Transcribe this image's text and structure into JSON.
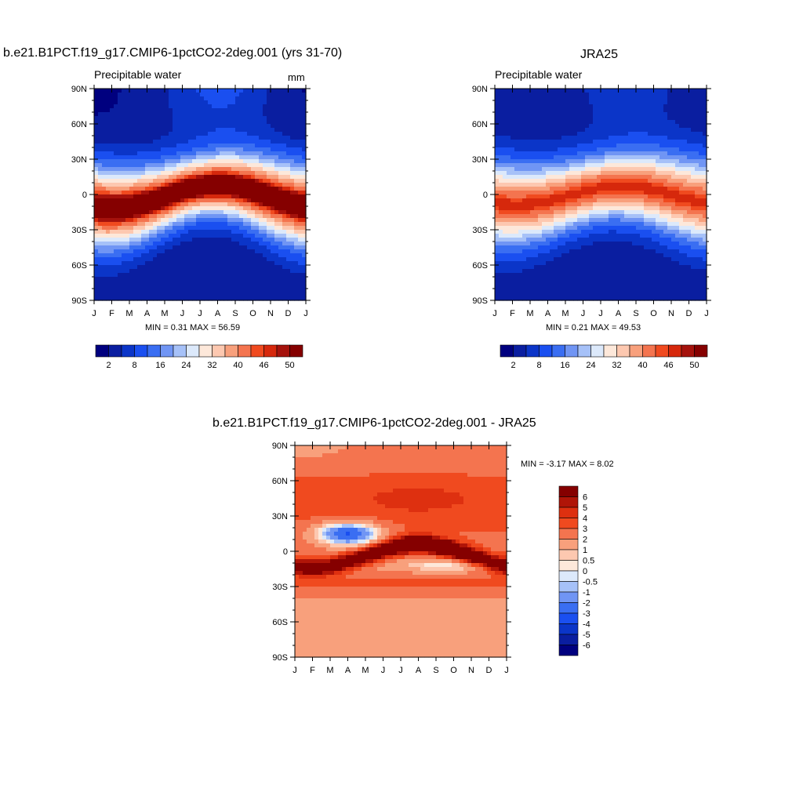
{
  "chart_data": [
    {
      "type": "heatmap",
      "title": "b.e21.B1PCT.f19_g17.CMIP6-1pctCO2-2deg.001 (yrs 31-70)",
      "subtitle": "Precipitable water",
      "units": "mm",
      "x_ticks": [
        "J",
        "F",
        "M",
        "A",
        "M",
        "J",
        "J",
        "A",
        "S",
        "O",
        "N",
        "D",
        "J"
      ],
      "y_ticks": [
        "90N",
        "60N",
        "30N",
        "0",
        "30S",
        "60S",
        "90S"
      ],
      "min": "0.31",
      "max": "56.59",
      "stats_text": "MIN =   0.31 MAX =  56.59",
      "colorbar_labels": [
        "2",
        "8",
        "16",
        "24",
        "32",
        "40",
        "46",
        "50"
      ]
    },
    {
      "type": "heatmap",
      "title": "JRA25",
      "subtitle": "Precipitable water",
      "x_ticks": [
        "J",
        "F",
        "M",
        "A",
        "M",
        "J",
        "J",
        "A",
        "S",
        "O",
        "N",
        "D",
        "J"
      ],
      "y_ticks": [
        "90N",
        "60N",
        "30N",
        "0",
        "30S",
        "60S",
        "90S"
      ],
      "min": "0.21",
      "max": "49.53",
      "stats_text": "MIN =   0.21 MAX =  49.53",
      "colorbar_labels": [
        "2",
        "8",
        "16",
        "24",
        "32",
        "40",
        "46",
        "50"
      ]
    },
    {
      "type": "heatmap",
      "title": "b.e21.B1PCT.f19_g17.CMIP6-1pctCO2-2deg.001 - JRA25",
      "x_ticks": [
        "J",
        "F",
        "M",
        "A",
        "M",
        "J",
        "J",
        "A",
        "S",
        "O",
        "N",
        "D",
        "J"
      ],
      "y_ticks": [
        "90N",
        "60N",
        "30N",
        "0",
        "30S",
        "60S",
        "90S"
      ],
      "min": "-3.17",
      "max": "8.02",
      "stats_text": "MIN =  -3.17 MAX =   8.02",
      "colorbar_labels": [
        "6",
        "5",
        "4",
        "3",
        "2",
        "1",
        "0.5",
        "0",
        "-0.5",
        "-1",
        "-2",
        "-3",
        "-4",
        "-5",
        "-6"
      ]
    }
  ],
  "palettes": {
    "absolute": [
      "#00007f",
      "#0a1ea0",
      "#0b35c8",
      "#1a4ff0",
      "#3a6ef2",
      "#7095f4",
      "#a6c1f8",
      "#dce9fb",
      "#fde8da",
      "#fdc8b0",
      "#f8a07c",
      "#f4744f",
      "#f04a1f",
      "#d6280c",
      "#a5120c",
      "#850000"
    ],
    "difference": [
      "#850000",
      "#b01508",
      "#de3010",
      "#f04a1f",
      "#f4744f",
      "#f8a07c",
      "#fdc8b0",
      "#fde8da",
      "#dce9fb",
      "#a6c1f8",
      "#7095f4",
      "#3a6ef2",
      "#1a4ff0",
      "#0b35c8",
      "#0a1ea0",
      "#00007f"
    ]
  }
}
